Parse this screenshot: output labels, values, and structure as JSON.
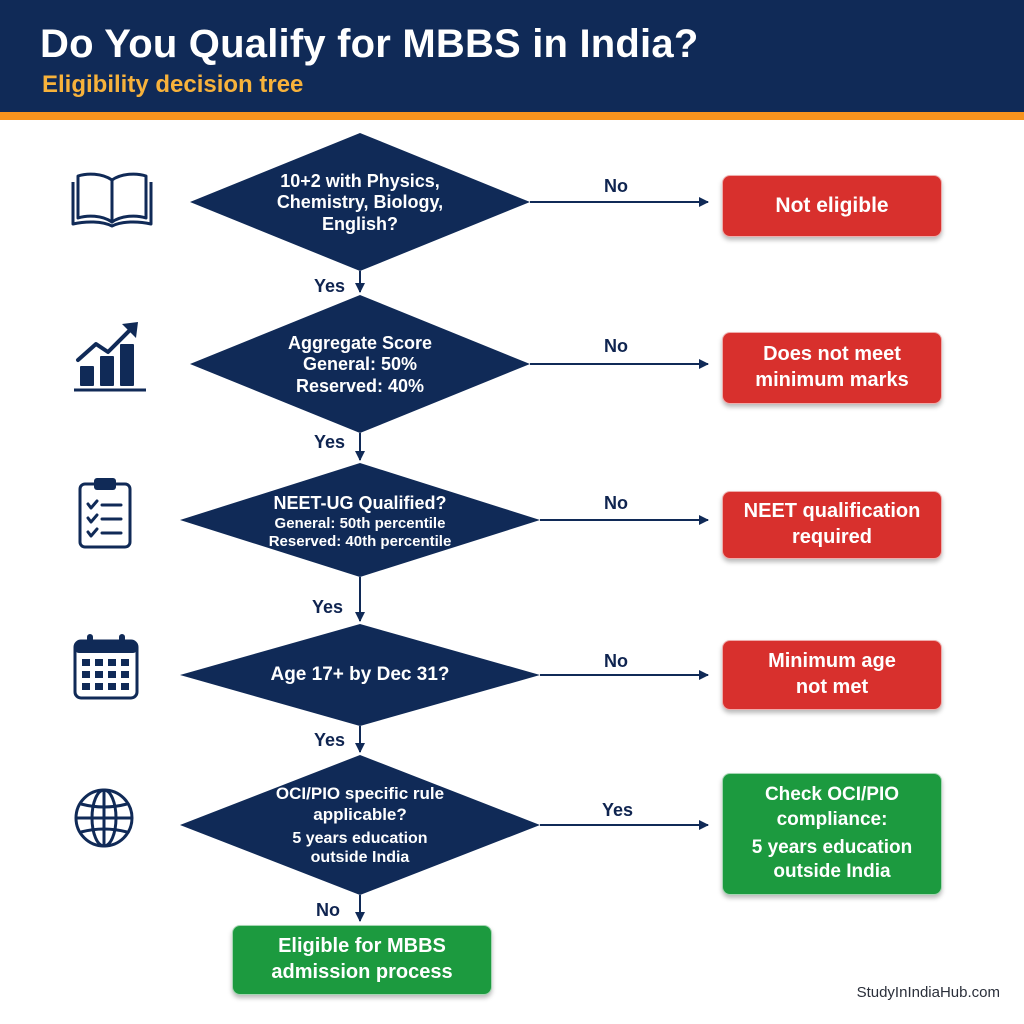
{
  "header": {
    "title": "Do You Qualify for MBBS in India?",
    "subtitle": "Eligibility decision tree"
  },
  "colors": {
    "navy": "#102a57",
    "accent_orange": "#f7931e",
    "subtitle_gold": "#f7b23b",
    "fail_red": "#d8302d",
    "success_green": "#1c9a3f"
  },
  "decisions": [
    {
      "icon": "open-book-icon",
      "lines": [
        "10+2 with Physics,",
        "Chemistry, Biology,",
        "English?"
      ],
      "no_label": "No",
      "no_outcome": [
        "Not eligible"
      ],
      "continue_label": "Yes"
    },
    {
      "icon": "bar-chart-growth-icon",
      "lines": [
        "Aggregate Score",
        "General: 50%",
        "Reserved: 40%"
      ],
      "no_label": "No",
      "no_outcome": [
        "Does not meet",
        "minimum marks"
      ],
      "continue_label": "Yes"
    },
    {
      "icon": "clipboard-checklist-icon",
      "lines": [
        "NEET-UG Qualified?",
        "General: 50th percentile",
        "Reserved: 40th percentile"
      ],
      "no_label": "No",
      "no_outcome": [
        "NEET qualification",
        "required"
      ],
      "continue_label": "Yes"
    },
    {
      "icon": "calendar-icon",
      "lines": [
        "Age 17+ by Dec 31?"
      ],
      "no_label": "No",
      "no_outcome": [
        "Minimum age",
        "not met"
      ],
      "continue_label": "Yes"
    },
    {
      "icon": "globe-icon",
      "lines": [
        "OCI/PIO specific rule",
        "applicable?",
        "5 years education",
        "outside India"
      ],
      "yes_label": "Yes",
      "yes_outcome": [
        "Check OCI/PIO",
        "compliance:",
        "5 years education",
        "outside India"
      ],
      "continue_label": "No"
    }
  ],
  "final_outcome": [
    "Eligible for MBBS",
    "admission process"
  ],
  "footer": "StudyInIndiaHub.com"
}
